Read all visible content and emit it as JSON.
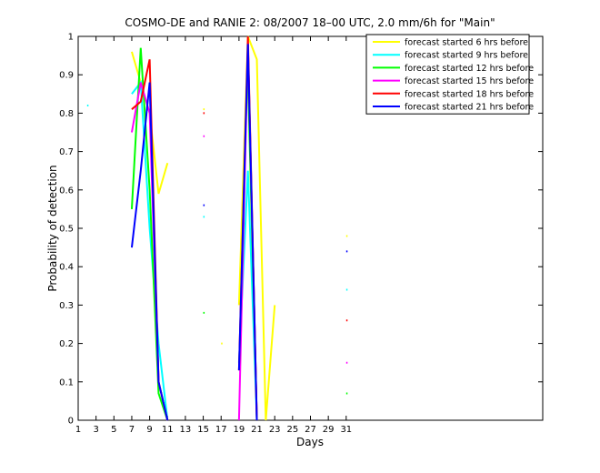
{
  "chart_data": {
    "type": "line",
    "title": "COSMO-DE and RANIE 2: 08/2007 18–00 UTC, 2.0 mm/6h for \"Main\"",
    "x_label": "Days",
    "y_label": "Probability of detection",
    "x": [
      1,
      2,
      3,
      4,
      5,
      6,
      7,
      8,
      9,
      10,
      11,
      12,
      13,
      14,
      15,
      16,
      17,
      18,
      19,
      20,
      21,
      22,
      23,
      24,
      25,
      26,
      27,
      28,
      29,
      30,
      31
    ],
    "xlim": [
      1,
      53
    ],
    "xticks": [
      1,
      3,
      5,
      7,
      9,
      11,
      13,
      15,
      17,
      19,
      21,
      23,
      25,
      27,
      29,
      31
    ],
    "ylim": [
      0,
      1
    ],
    "yticks": [
      0,
      0.1,
      0.2,
      0.3,
      0.4,
      0.5,
      0.6,
      0.7,
      0.8,
      0.9,
      1
    ],
    "grid": false,
    "legend": "upper right",
    "series": [
      {
        "name": "forecast started 6 hrs before",
        "color": "#ffff00",
        "values": [
          null,
          null,
          null,
          null,
          null,
          null,
          0.96,
          0.88,
          0.8,
          0.59,
          0.67,
          null,
          null,
          null,
          0.81,
          null,
          0.2,
          null,
          0.3,
          1,
          0.94,
          0,
          0.3,
          null,
          null,
          null,
          null,
          null,
          null,
          null,
          0.48
        ]
      },
      {
        "name": "forecast started 9 hrs before",
        "color": "#00ffff",
        "values": [
          null,
          0.82,
          null,
          null,
          null,
          null,
          0.85,
          0.88,
          0.5,
          0.2,
          0,
          null,
          null,
          null,
          0.53,
          null,
          null,
          null,
          0.15,
          0.65,
          0,
          null,
          null,
          null,
          null,
          null,
          null,
          null,
          null,
          null,
          0.34
        ]
      },
      {
        "name": "forecast started 12 hrs before",
        "color": "#00ff00",
        "values": [
          null,
          null,
          null,
          null,
          null,
          null,
          0.55,
          0.97,
          0.6,
          0.07,
          0,
          null,
          null,
          null,
          0.28,
          null,
          null,
          null,
          null,
          0.9,
          0,
          null,
          null,
          null,
          null,
          null,
          null,
          null,
          null,
          null,
          0.07
        ]
      },
      {
        "name": "forecast started 15 hrs before",
        "color": "#ff00ff",
        "values": [
          null,
          null,
          null,
          null,
          null,
          null,
          0.75,
          0.88,
          0.8,
          0.1,
          0,
          null,
          null,
          null,
          0.74,
          null,
          null,
          null,
          0,
          0.98,
          0,
          null,
          null,
          null,
          null,
          null,
          null,
          null,
          null,
          null,
          0.15
        ]
      },
      {
        "name": "forecast started 18 hrs before",
        "color": "#ff0000",
        "values": [
          null,
          null,
          null,
          null,
          null,
          null,
          0.81,
          0.83,
          0.94,
          0.1,
          0,
          null,
          null,
          null,
          0.8,
          null,
          null,
          null,
          0.13,
          1,
          0,
          null,
          null,
          null,
          null,
          null,
          null,
          null,
          null,
          null,
          0.26
        ]
      },
      {
        "name": "forecast started 21 hrs before",
        "color": "#0000ff",
        "values": [
          null,
          null,
          null,
          null,
          null,
          null,
          0.45,
          0.65,
          0.88,
          0.1,
          0,
          null,
          null,
          null,
          0.56,
          null,
          null,
          null,
          0.13,
          0.98,
          0,
          null,
          null,
          null,
          null,
          null,
          null,
          null,
          null,
          null,
          0.44
        ]
      }
    ]
  }
}
